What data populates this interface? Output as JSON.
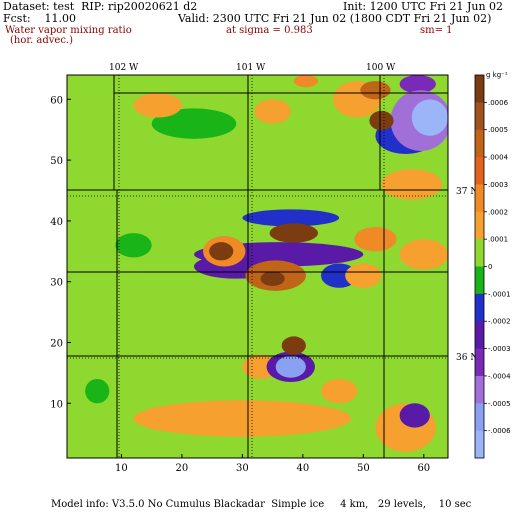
{
  "header": {
    "dataset": "Dataset: test  RIP: rip20020621 d2",
    "init": "Init: 1200 UTC Fri 21 Jun 02",
    "fcst": "Fcst:    11.00",
    "valid": "Valid: 2300 UTC Fri 21 Jun 02 (1800 CDT Fri 21 Jun 02)",
    "field_line1": "Water vapor mixing ratio",
    "field_line2": "(hor. advec.)",
    "sigma": "at sigma = 0.983",
    "sm": "sm= 1",
    "model_info": "Model info: V3.5.0 No Cumulus Blackadar  Simple ice     4 km,   29 levels,    10 sec"
  },
  "map": {
    "lon_labels": [
      "102 W",
      "101 W",
      "100 W"
    ],
    "lat_labels": [
      "37 N",
      "36 N"
    ]
  },
  "colorbar": {
    "unit": "g kg⁻¹",
    "labels": [
      ".0006",
      ".0005",
      ".0004",
      ".0003",
      ".0002",
      ".0001",
      "0",
      "-.0001",
      "-.0002",
      "-.0003",
      "-.0004",
      "-.0005",
      "-.0006"
    ],
    "colors": [
      "#7a3c10",
      "#a0521c",
      "#c06418",
      "#e0641a",
      "#f08a26",
      "#f6a030",
      "#8ed830",
      "#18b418",
      "#2030c8",
      "#5a1aa8",
      "#7a2ab8",
      "#a070d8",
      "#8aa0f0",
      "#9cb4f8"
    ]
  },
  "chart_data": {
    "type": "heatmap",
    "title": "Water vapor mixing ratio",
    "subtitle": "(hor. advec.)",
    "xlim": [
      1,
      64
    ],
    "ylim": [
      1,
      64
    ],
    "x_ticks": [
      10,
      20,
      30,
      40,
      50,
      60
    ],
    "y_ticks": [
      10,
      20,
      30,
      40,
      50,
      60
    ],
    "background_value": 5e-05,
    "blobs": [
      {
        "x": 36,
        "y": 34.5,
        "rx": 14,
        "ry": 2.0,
        "value": -0.00025
      },
      {
        "x": 29,
        "y": 32.5,
        "rx": 7,
        "ry": 2.0,
        "value": -0.00025
      },
      {
        "x": 35.5,
        "y": 31,
        "rx": 5,
        "ry": 2.5,
        "value": 0.0004
      },
      {
        "x": 35,
        "y": 30.5,
        "rx": 2,
        "ry": 1.2,
        "value": 0.0006
      },
      {
        "x": 26.5,
        "y": 35,
        "rx": 2,
        "ry": 1.5,
        "value": 0.0006
      },
      {
        "x": 27,
        "y": 35,
        "rx": 3.5,
        "ry": 2.5,
        "value": 0.00025
      },
      {
        "x": 38.5,
        "y": 38,
        "rx": 4,
        "ry": 1.6,
        "value": 0.0006
      },
      {
        "x": 38,
        "y": 40.5,
        "rx": 8,
        "ry": 1.4,
        "value": -0.0002
      },
      {
        "x": 38.5,
        "y": 19.5,
        "rx": 2,
        "ry": 1.5,
        "value": 0.0006
      },
      {
        "x": 38,
        "y": 16,
        "rx": 2.5,
        "ry": 1.8,
        "value": -0.0006
      },
      {
        "x": 38,
        "y": 16,
        "rx": 4,
        "ry": 2.5,
        "value": -0.0003
      },
      {
        "x": 30,
        "y": 7.5,
        "rx": 18,
        "ry": 3,
        "value": 0.00012
      },
      {
        "x": 33,
        "y": 16,
        "rx": 3,
        "ry": 2,
        "value": 0.00015
      },
      {
        "x": 17,
        "y": 7.5,
        "rx": 4,
        "ry": 2,
        "value": 0.00015
      },
      {
        "x": 61,
        "y": 57,
        "rx": 3,
        "ry": 3,
        "value": -0.0007
      },
      {
        "x": 59.5,
        "y": 56.5,
        "rx": 5,
        "ry": 5,
        "value": -0.00045
      },
      {
        "x": 57,
        "y": 54,
        "rx": 5,
        "ry": 3,
        "value": -0.0002
      },
      {
        "x": 53,
        "y": 56.5,
        "rx": 2,
        "ry": 1.6,
        "value": 0.0006
      },
      {
        "x": 52,
        "y": 61.5,
        "rx": 2.5,
        "ry": 1.5,
        "value": 0.00045
      },
      {
        "x": 59,
        "y": 62.5,
        "rx": 3,
        "ry": 1.5,
        "value": -0.0004
      },
      {
        "x": 49,
        "y": 60,
        "rx": 4,
        "ry": 3,
        "value": 0.00015
      },
      {
        "x": 40.5,
        "y": 63,
        "rx": 2,
        "ry": 1,
        "value": 0.00025
      },
      {
        "x": 58,
        "y": 46,
        "rx": 5,
        "ry": 2.5,
        "value": 0.00013
      },
      {
        "x": 46,
        "y": 31,
        "rx": 3,
        "ry": 2,
        "value": -0.00012
      },
      {
        "x": 50,
        "y": 31,
        "rx": 3,
        "ry": 2,
        "value": 0.00015
      },
      {
        "x": 52,
        "y": 37,
        "rx": 3.5,
        "ry": 2,
        "value": 0.00025
      },
      {
        "x": 60,
        "y": 34.5,
        "rx": 4,
        "ry": 2.5,
        "value": 0.00012
      },
      {
        "x": 58.5,
        "y": 8,
        "rx": 2.5,
        "ry": 2,
        "value": -0.0003
      },
      {
        "x": 57,
        "y": 6,
        "rx": 5,
        "ry": 4,
        "value": 0.00015
      },
      {
        "x": 22,
        "y": 56,
        "rx": 7,
        "ry": 2.5,
        "value": -8e-05
      },
      {
        "x": 16,
        "y": 59,
        "rx": 4,
        "ry": 2,
        "value": 0.00015
      },
      {
        "x": 35,
        "y": 58,
        "rx": 3,
        "ry": 2,
        "value": 0.00013
      },
      {
        "x": 6,
        "y": 12,
        "rx": 2,
        "ry": 2,
        "value": -0.0001
      },
      {
        "x": 46,
        "y": 12,
        "rx": 3,
        "ry": 2,
        "value": 0.00015
      },
      {
        "x": 12,
        "y": 36,
        "rx": 3,
        "ry": 2,
        "value": -8e-05
      }
    ]
  }
}
